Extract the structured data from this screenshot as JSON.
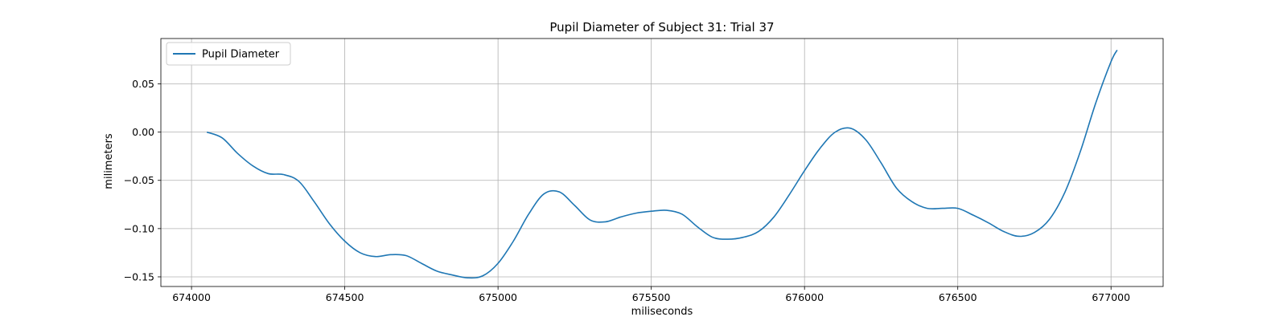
{
  "chart_data": {
    "type": "line",
    "title": "Pupil Diameter of Subject 31: Trial 37",
    "xlabel": "miliseconds",
    "ylabel": "milimeters",
    "xlim": [
      673900,
      677170
    ],
    "ylim": [
      -0.16,
      0.097
    ],
    "xticks": [
      674000,
      674500,
      675000,
      675500,
      676000,
      676500,
      677000
    ],
    "yticks": [
      -0.15,
      -0.1,
      -0.05,
      0.0,
      0.05
    ],
    "ytick_labels": [
      "−0.15",
      "−0.10",
      "−0.05",
      "0.00",
      "0.05"
    ],
    "grid": true,
    "legend_position": "upper-left",
    "series": [
      {
        "name": "Pupil Diameter",
        "color": "#1f77b4",
        "x": [
          674050,
          674100,
          674150,
          674200,
          674250,
          674300,
          674350,
          674400,
          674450,
          674500,
          674550,
          674600,
          674650,
          674700,
          674750,
          674800,
          674850,
          674900,
          674950,
          675000,
          675050,
          675100,
          675150,
          675200,
          675250,
          675300,
          675350,
          675400,
          675450,
          675500,
          675550,
          675600,
          675650,
          675700,
          675750,
          675800,
          675850,
          675900,
          675950,
          676000,
          676050,
          676100,
          676150,
          676200,
          676250,
          676300,
          676350,
          676400,
          676450,
          676500,
          676550,
          676600,
          676650,
          676700,
          676750,
          676800,
          676850,
          676900,
          676950,
          677000,
          677020
        ],
        "y": [
          0.0,
          -0.006,
          -0.022,
          -0.035,
          -0.043,
          -0.044,
          -0.051,
          -0.072,
          -0.095,
          -0.113,
          -0.125,
          -0.129,
          -0.127,
          -0.128,
          -0.136,
          -0.144,
          -0.148,
          -0.151,
          -0.149,
          -0.136,
          -0.113,
          -0.085,
          -0.064,
          -0.062,
          -0.076,
          -0.091,
          -0.093,
          -0.088,
          -0.084,
          -0.082,
          -0.081,
          -0.085,
          -0.098,
          -0.109,
          -0.111,
          -0.109,
          -0.103,
          -0.088,
          -0.065,
          -0.04,
          -0.017,
          0.0,
          0.004,
          -0.008,
          -0.032,
          -0.058,
          -0.072,
          -0.079,
          -0.079,
          -0.079,
          -0.086,
          -0.094,
          -0.103,
          -0.108,
          -0.104,
          -0.09,
          -0.062,
          -0.02,
          0.03,
          0.073,
          0.085
        ]
      }
    ]
  }
}
